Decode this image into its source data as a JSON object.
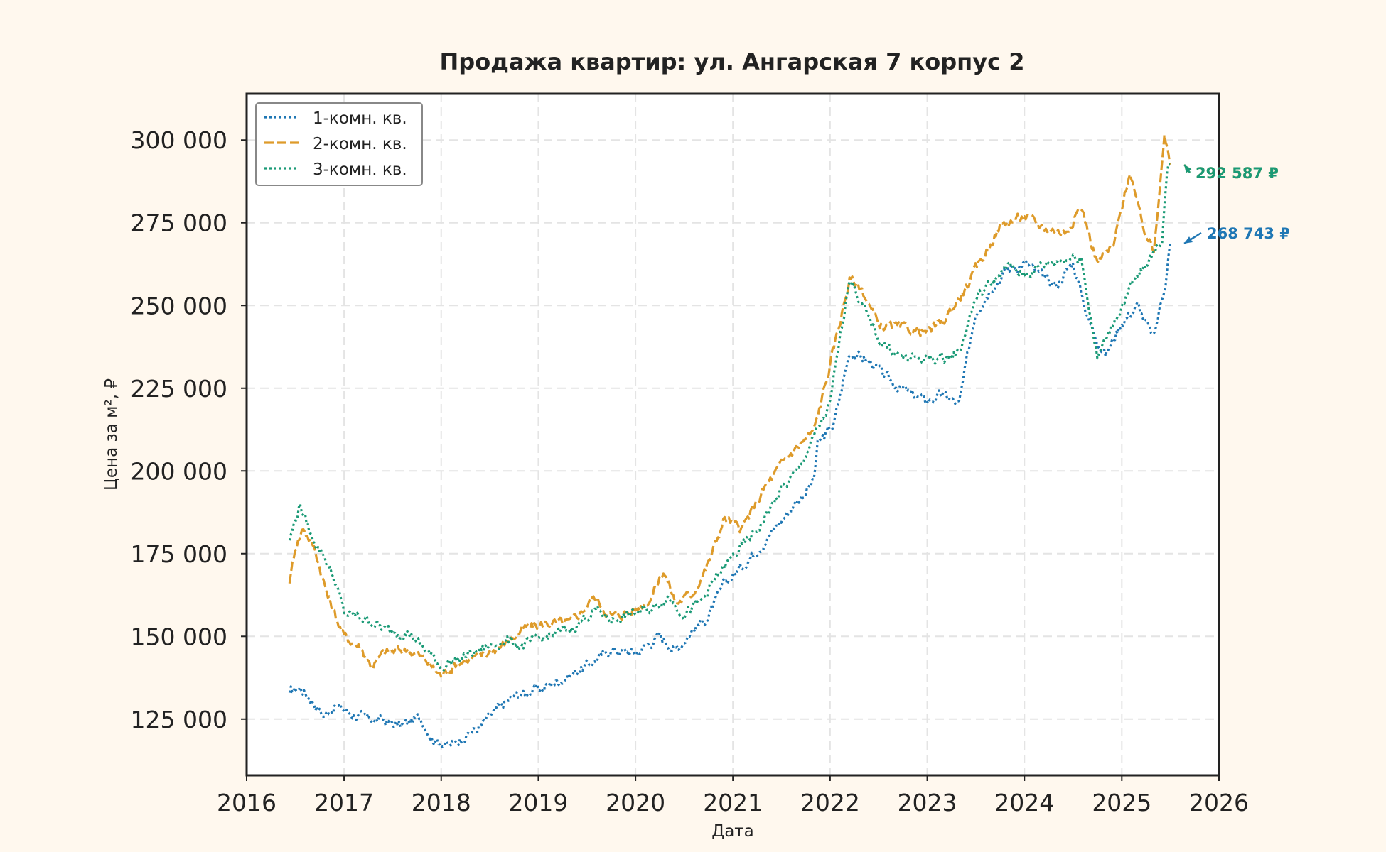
{
  "chart_data": {
    "type": "line",
    "title": "Продажа квартир: ул. Ангарская 7 корпус 2",
    "xlabel": "Дата",
    "ylabel": "Цена за м², ₽",
    "xlim": [
      "2016-01-01",
      "2026-01-01"
    ],
    "ylim": [
      108000,
      314000
    ],
    "x_ticks": [
      "2016",
      "2017",
      "2018",
      "2019",
      "2020",
      "2021",
      "2022",
      "2023",
      "2024",
      "2025",
      "2026"
    ],
    "y_ticks": [
      125000,
      150000,
      175000,
      200000,
      225000,
      250000,
      275000,
      300000
    ],
    "y_tick_labels": [
      "125 000",
      "150 000",
      "175 000",
      "200 000",
      "225 000",
      "250 000",
      "275 000",
      "300 000"
    ],
    "grid": true,
    "legend_position": "top-left",
    "series": [
      {
        "name": "1-комн. кв.",
        "color": "#1f77b4",
        "line_style": "dotted",
        "last_value_label": "268 743 ₽",
        "points": [
          [
            "2016-06-10",
            133000
          ],
          [
            "2016-07-20",
            134500
          ],
          [
            "2016-09-01",
            131000
          ],
          [
            "2016-10-15",
            126000
          ],
          [
            "2016-12-01",
            129000
          ],
          [
            "2017-02-01",
            126500
          ],
          [
            "2017-04-01",
            125000
          ],
          [
            "2017-06-01",
            124500
          ],
          [
            "2017-08-01",
            123000
          ],
          [
            "2017-10-15",
            125500
          ],
          [
            "2017-12-01",
            119000
          ],
          [
            "2018-02-01",
            117000
          ],
          [
            "2018-04-01",
            120000
          ],
          [
            "2018-06-01",
            123000
          ],
          [
            "2018-08-01",
            128000
          ],
          [
            "2018-10-01",
            132000
          ],
          [
            "2019-01-01",
            134000
          ],
          [
            "2019-04-01",
            137000
          ],
          [
            "2019-07-01",
            141000
          ],
          [
            "2019-10-01",
            146000
          ],
          [
            "2020-01-01",
            145000
          ],
          [
            "2020-04-01",
            150000
          ],
          [
            "2020-06-01",
            146000
          ],
          [
            "2020-08-01",
            152000
          ],
          [
            "2020-10-01",
            156000
          ],
          [
            "2020-12-01",
            166000
          ],
          [
            "2021-02-01",
            171000
          ],
          [
            "2021-05-01",
            179000
          ],
          [
            "2021-08-01",
            188000
          ],
          [
            "2021-11-01",
            197000
          ],
          [
            "2021-11-15",
            208000
          ],
          [
            "2022-01-15",
            214000
          ],
          [
            "2022-03-15",
            236000
          ],
          [
            "2022-06-01",
            233000
          ],
          [
            "2022-08-01",
            228000
          ],
          [
            "2022-11-01",
            223000
          ],
          [
            "2023-01-01",
            221000
          ],
          [
            "2023-03-01",
            223000
          ],
          [
            "2023-05-01",
            220000
          ],
          [
            "2023-07-01",
            248000
          ],
          [
            "2023-09-01",
            256000
          ],
          [
            "2023-11-01",
            261000
          ],
          [
            "2024-01-01",
            263000
          ],
          [
            "2024-03-01",
            259000
          ],
          [
            "2024-05-01",
            256000
          ],
          [
            "2024-07-01",
            263000
          ],
          [
            "2024-09-01",
            245000
          ],
          [
            "2024-11-01",
            235000
          ],
          [
            "2025-01-01",
            245000
          ],
          [
            "2025-03-01",
            250000
          ],
          [
            "2025-05-01",
            240000
          ],
          [
            "2025-06-15",
            258000
          ],
          [
            "2025-07-01",
            268743
          ]
        ]
      },
      {
        "name": "2-комн. кв.",
        "color": "#de9b2a",
        "line_style": "dashed",
        "last_value_label": "292 587 ₽",
        "points": [
          [
            "2016-06-10",
            166000
          ],
          [
            "2016-07-01",
            177000
          ],
          [
            "2016-08-01",
            183000
          ],
          [
            "2016-09-15",
            176000
          ],
          [
            "2016-11-01",
            162000
          ],
          [
            "2017-01-01",
            150000
          ],
          [
            "2017-03-01",
            147000
          ],
          [
            "2017-04-15",
            141000
          ],
          [
            "2017-06-01",
            145000
          ],
          [
            "2017-09-01",
            146000
          ],
          [
            "2017-11-01",
            143000
          ],
          [
            "2018-01-01",
            138000
          ],
          [
            "2018-03-01",
            142000
          ],
          [
            "2018-06-01",
            144000
          ],
          [
            "2018-09-01",
            148000
          ],
          [
            "2018-11-01",
            152000
          ],
          [
            "2019-02-01",
            154000
          ],
          [
            "2019-05-01",
            154000
          ],
          [
            "2019-08-01",
            162000
          ],
          [
            "2019-10-01",
            156000
          ],
          [
            "2020-01-01",
            158000
          ],
          [
            "2020-03-01",
            162000
          ],
          [
            "2020-04-15",
            170000
          ],
          [
            "2020-06-01",
            160000
          ],
          [
            "2020-08-01",
            163000
          ],
          [
            "2020-10-01",
            172000
          ],
          [
            "2020-12-01",
            186000
          ],
          [
            "2021-02-01",
            182000
          ],
          [
            "2021-05-01",
            195000
          ],
          [
            "2021-08-01",
            205000
          ],
          [
            "2021-11-01",
            212000
          ],
          [
            "2022-01-01",
            232000
          ],
          [
            "2022-03-15",
            258000
          ],
          [
            "2022-05-01",
            255000
          ],
          [
            "2022-07-01",
            244000
          ],
          [
            "2022-10-01",
            243000
          ],
          [
            "2023-01-01",
            242000
          ],
          [
            "2023-03-01",
            245000
          ],
          [
            "2023-06-01",
            256000
          ],
          [
            "2023-08-01",
            265000
          ],
          [
            "2023-10-01",
            274000
          ],
          [
            "2024-01-01",
            277000
          ],
          [
            "2024-03-01",
            274000
          ],
          [
            "2024-06-01",
            272000
          ],
          [
            "2024-08-01",
            280000
          ],
          [
            "2024-10-01",
            263000
          ],
          [
            "2024-12-01",
            268000
          ],
          [
            "2025-02-01",
            291000
          ],
          [
            "2025-03-15",
            275000
          ],
          [
            "2025-05-01",
            266000
          ],
          [
            "2025-06-10",
            303000
          ],
          [
            "2025-07-01",
            292587
          ]
        ]
      },
      {
        "name": "3-комн. кв.",
        "color": "#1a9a76",
        "line_style": "dotted",
        "last_value_label": "292 587 ₽",
        "points": [
          [
            "2016-06-10",
            179000
          ],
          [
            "2016-07-20",
            190000
          ],
          [
            "2016-09-01",
            180000
          ],
          [
            "2016-10-15",
            175000
          ],
          [
            "2016-12-01",
            166000
          ],
          [
            "2017-01-01",
            157000
          ],
          [
            "2017-04-01",
            155000
          ],
          [
            "2017-06-01",
            152000
          ],
          [
            "2017-09-01",
            151000
          ],
          [
            "2017-11-01",
            146000
          ],
          [
            "2018-01-01",
            141000
          ],
          [
            "2018-03-01",
            143000
          ],
          [
            "2018-06-01",
            146000
          ],
          [
            "2018-09-01",
            149000
          ],
          [
            "2018-11-01",
            147000
          ],
          [
            "2019-02-01",
            150000
          ],
          [
            "2019-05-01",
            152000
          ],
          [
            "2019-08-01",
            158000
          ],
          [
            "2019-10-01",
            155000
          ],
          [
            "2020-01-01",
            157000
          ],
          [
            "2020-03-01",
            158000
          ],
          [
            "2020-05-01",
            162000
          ],
          [
            "2020-07-01",
            157000
          ],
          [
            "2020-09-01",
            160000
          ],
          [
            "2020-11-01",
            168000
          ],
          [
            "2021-01-01",
            174000
          ],
          [
            "2021-04-01",
            182000
          ],
          [
            "2021-07-01",
            194000
          ],
          [
            "2021-09-01",
            200000
          ],
          [
            "2021-11-01",
            210000
          ],
          [
            "2022-01-01",
            220000
          ],
          [
            "2022-03-15",
            259000
          ],
          [
            "2022-05-01",
            250000
          ],
          [
            "2022-07-01",
            240000
          ],
          [
            "2022-10-01",
            234000
          ],
          [
            "2023-01-01",
            234000
          ],
          [
            "2023-03-01",
            234000
          ],
          [
            "2023-05-01",
            236000
          ],
          [
            "2023-07-01",
            252000
          ],
          [
            "2023-09-01",
            257000
          ],
          [
            "2023-11-01",
            262000
          ],
          [
            "2024-01-01",
            259000
          ],
          [
            "2024-03-01",
            262000
          ],
          [
            "2024-06-01",
            264000
          ],
          [
            "2024-08-01",
            265000
          ],
          [
            "2024-10-01",
            234000
          ],
          [
            "2024-12-01",
            245000
          ],
          [
            "2025-02-01",
            255000
          ],
          [
            "2025-04-01",
            262000
          ],
          [
            "2025-06-01",
            270000
          ],
          [
            "2025-06-20",
            292000
          ],
          [
            "2025-07-01",
            292587
          ]
        ]
      }
    ]
  }
}
